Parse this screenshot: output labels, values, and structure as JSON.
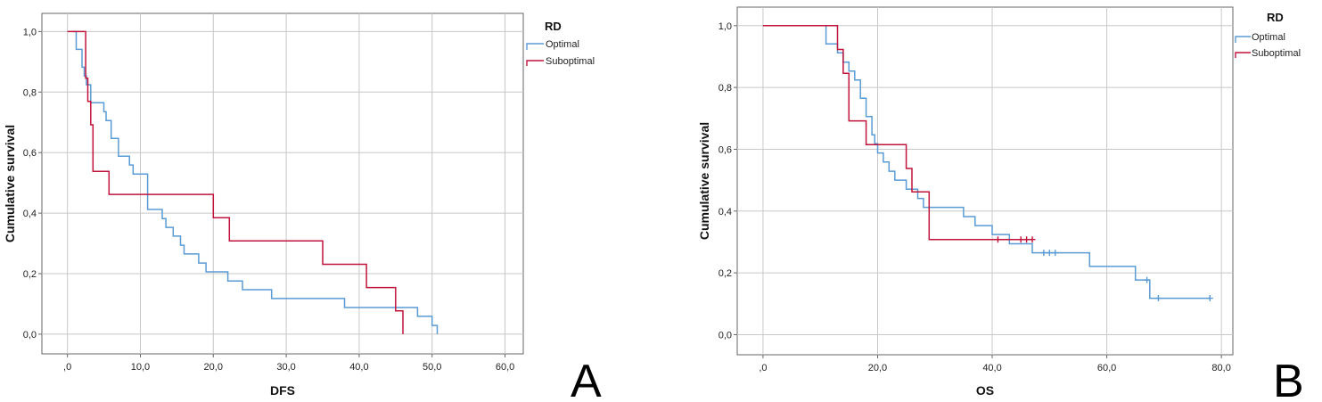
{
  "colors": {
    "optimal": "#5a9bd5",
    "suboptimal": "#c0143c",
    "grid": "#c8c8c8",
    "axis": "#555555"
  },
  "chart_data": [
    {
      "type": "line",
      "subtype": "kaplan-meier-step",
      "panel_label": "A",
      "xlabel": "DFS",
      "ylabel": "Cumulative survival",
      "xlim": [
        -3.5,
        62.5
      ],
      "ylim": [
        -0.065,
        1.06
      ],
      "xticks": [
        0,
        10,
        20,
        30,
        40,
        50,
        60
      ],
      "xtick_labels": [
        ",0",
        "10,0",
        "20,0",
        "30,0",
        "40,0",
        "50,0",
        "60,0"
      ],
      "yticks": [
        0,
        0.2,
        0.4,
        0.6,
        0.8,
        1.0
      ],
      "ytick_labels": [
        "0,0",
        "0,2",
        "0,4",
        "0,6",
        "0,8",
        "1,0"
      ],
      "grid": true,
      "legend": {
        "title": "RD",
        "position": "top-right-outside"
      },
      "series": [
        {
          "name": "Optimal",
          "color": "#5a9bd5",
          "x": [
            0.8,
            1.2,
            2,
            2.3,
            2.6,
            3.2,
            5,
            5.3,
            6,
            7,
            8.5,
            9,
            11,
            13,
            13.5,
            14.5,
            15.5,
            16,
            18,
            19,
            22,
            24,
            26,
            28,
            30,
            34,
            38,
            44,
            48,
            50,
            50.7
          ],
          "y": [
            1.0,
            0.941,
            0.882,
            0.853,
            0.824,
            0.765,
            0.735,
            0.706,
            0.647,
            0.588,
            0.559,
            0.529,
            0.412,
            0.382,
            0.353,
            0.324,
            0.294,
            0.265,
            0.235,
            0.206,
            0.176,
            0.147,
            0.147,
            0.118,
            0.118,
            0.118,
            0.088,
            0.088,
            0.059,
            0.029,
            0.0
          ],
          "censored_x": [],
          "censored_y": []
        },
        {
          "name": "Suboptimal",
          "color": "#c0143c",
          "x": [
            0,
            2.5,
            2.8,
            3.2,
            3.5,
            5.7,
            20,
            22.2,
            35,
            41,
            45,
            46
          ],
          "y": [
            1.0,
            0.846,
            0.769,
            0.692,
            0.538,
            0.462,
            0.385,
            0.308,
            0.231,
            0.154,
            0.077,
            0.0
          ],
          "censored_x": [],
          "censored_y": []
        }
      ]
    },
    {
      "type": "line",
      "subtype": "kaplan-meier-step",
      "panel_label": "B",
      "xlabel": "OS",
      "ylabel": "Cumulative survival",
      "xlim": [
        -4.5,
        82
      ],
      "ylim": [
        -0.065,
        1.06
      ],
      "xticks": [
        0,
        20,
        40,
        60,
        80
      ],
      "xtick_labels": [
        ",0",
        "20,0",
        "40,0",
        "60,0",
        "80,0"
      ],
      "yticks": [
        0,
        0.2,
        0.4,
        0.6,
        0.8,
        1.0
      ],
      "ytick_labels": [
        "0,0",
        "0,2",
        "0,4",
        "0,6",
        "0,8",
        "1,0"
      ],
      "grid": true,
      "legend": {
        "title": "RD",
        "position": "top-right-outside"
      },
      "series": [
        {
          "name": "Optimal",
          "color": "#5a9bd5",
          "x": [
            0,
            11,
            13,
            14,
            15,
            16,
            17,
            18,
            19,
            19.5,
            20,
            21,
            22,
            23,
            25,
            26,
            27,
            28,
            35,
            37,
            40,
            43,
            47,
            57,
            65,
            67.5
          ],
          "y": [
            1.0,
            0.941,
            0.912,
            0.882,
            0.853,
            0.824,
            0.765,
            0.706,
            0.647,
            0.618,
            0.588,
            0.559,
            0.529,
            0.5,
            0.471,
            0.471,
            0.441,
            0.412,
            0.382,
            0.353,
            0.324,
            0.294,
            0.265,
            0.221,
            0.177,
            0.118
          ],
          "end_x": 78,
          "censored_x": [
            49,
            50,
            51,
            67,
            69,
            78
          ],
          "censored_y": [
            0.265,
            0.265,
            0.265,
            0.177,
            0.118,
            0.118
          ]
        },
        {
          "name": "Suboptimal",
          "color": "#c0143c",
          "x": [
            0,
            13,
            14,
            15,
            18,
            25,
            26,
            27,
            29
          ],
          "y": [
            1.0,
            0.923,
            0.846,
            0.692,
            0.615,
            0.538,
            0.462,
            0.462,
            0.308
          ],
          "end_x": 47,
          "censored_x": [
            41,
            45,
            46,
            47
          ],
          "censored_y": [
            0.308,
            0.308,
            0.308,
            0.308
          ]
        }
      ]
    }
  ]
}
